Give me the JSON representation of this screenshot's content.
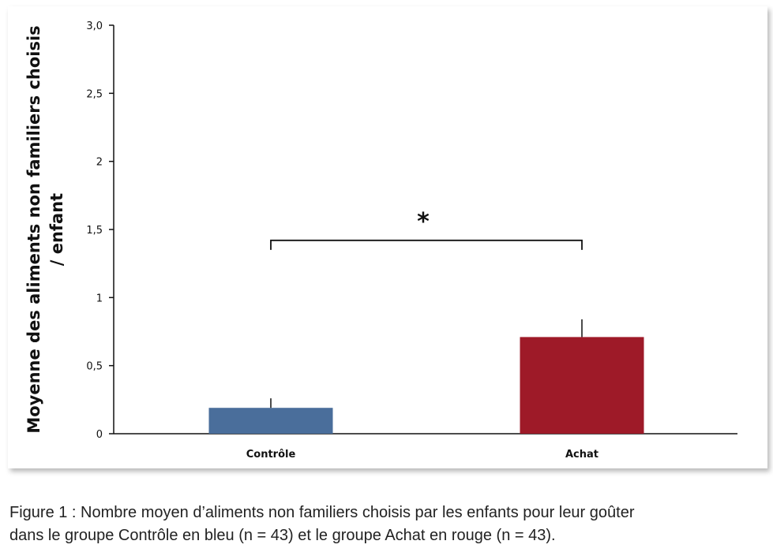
{
  "chart_data": {
    "type": "bar",
    "categories": [
      "Contrôle",
      "Achat"
    ],
    "values": [
      0.19,
      0.71
    ],
    "error_upper": [
      0.26,
      0.84
    ],
    "colors": [
      "#4a6e9b",
      "#9e1a28"
    ],
    "ylim": [
      0,
      3.0
    ],
    "yticks": [
      0,
      0.5,
      1,
      1.5,
      2,
      2.5,
      3.0
    ],
    "ytick_labels": [
      "0",
      "0,5",
      "1",
      "1,5",
      "2",
      "2,5",
      "3,0"
    ],
    "ylabel_lines": [
      "Moyenne des aliments non familiers choisis",
      "/ enfant"
    ],
    "xlabel": "",
    "significance": {
      "between": [
        "Contrôle",
        "Achat"
      ],
      "marker": "*",
      "bracket_y": 1.42
    }
  },
  "caption": {
    "line1": "Figure 1 : Nombre moyen d’aliments non familiers choisis par les enfants pour leur goûter",
    "line2": "dans le groupe Contrôle en bleu (n = 43) et le groupe Achat en rouge (n = 43)."
  }
}
